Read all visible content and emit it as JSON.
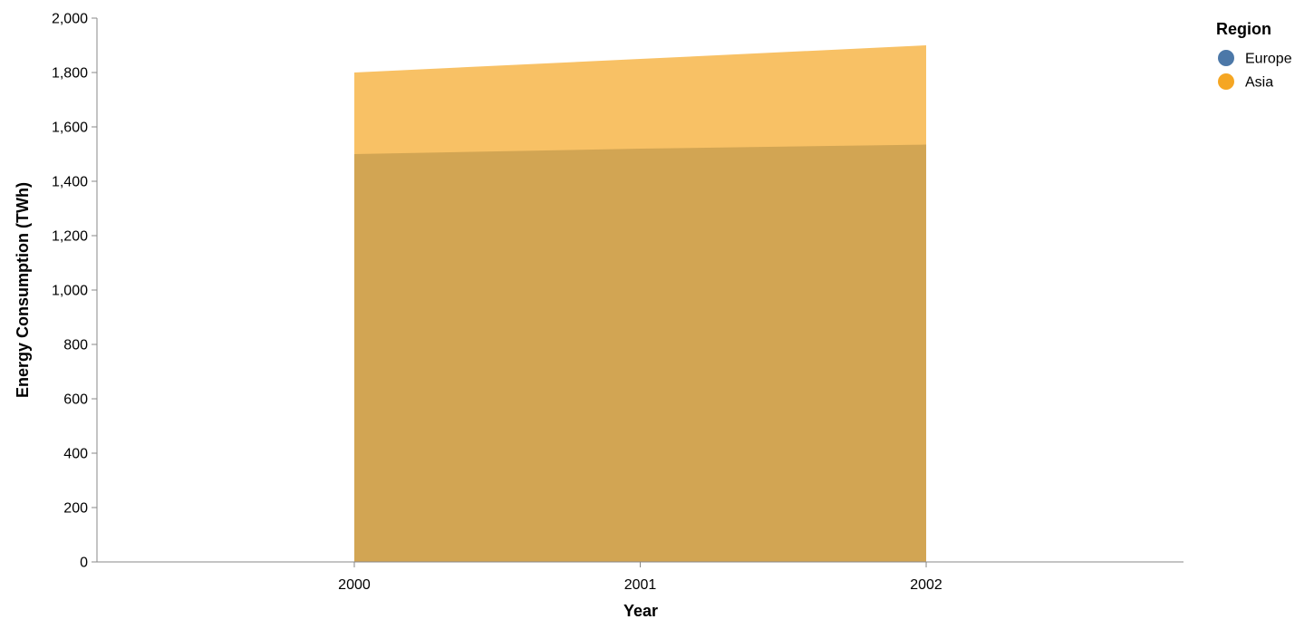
{
  "chart_data": {
    "type": "area",
    "x": [
      2000,
      2001,
      2002
    ],
    "x_ticks": [
      "2000",
      "2001",
      "2002"
    ],
    "xlim": [
      1999.1,
      2002.9
    ],
    "xlabel": "Year",
    "ylabel": "Energy Consumption (TWh)",
    "ylim": [
      0,
      2000
    ],
    "y_ticks": [
      0,
      200,
      400,
      600,
      800,
      1000,
      1200,
      1400,
      1600,
      1800,
      2000
    ],
    "y_tick_labels": [
      "0",
      "200",
      "400",
      "600",
      "800",
      "1,000",
      "1,200",
      "1,400",
      "1,600",
      "1,800",
      "2,000"
    ],
    "grid": false,
    "stacked": false,
    "legend": {
      "title": "Region",
      "placement": "top-right"
    },
    "series": [
      {
        "name": "Europe",
        "values": [
          1500,
          1520,
          1535
        ],
        "color": "#4c78a8"
      },
      {
        "name": "Asia",
        "values": [
          1800,
          1850,
          1900
        ],
        "color": "#f5a623"
      }
    ],
    "area_opacity": 0.7,
    "axis_color": "#888888"
  }
}
